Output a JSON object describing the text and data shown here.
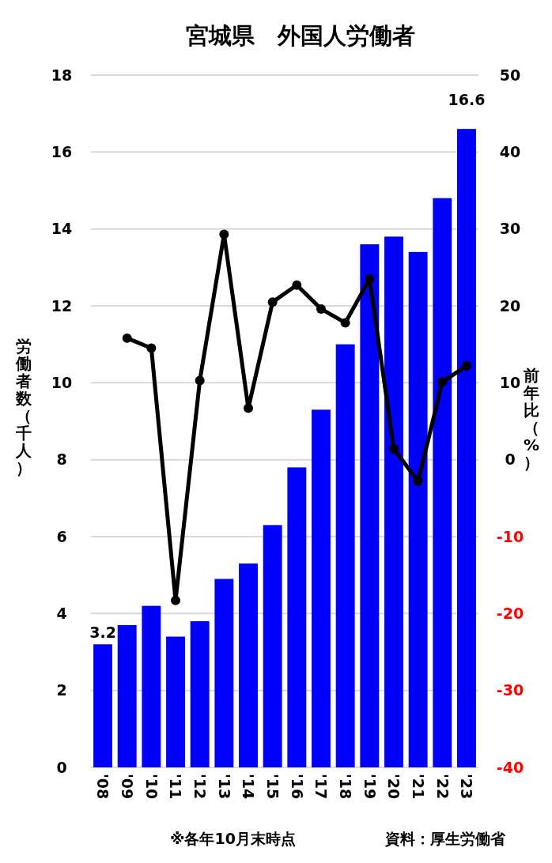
{
  "chart_data": {
    "type": "bar",
    "title": "宮城県　外国人労働者",
    "ylabel": "労働者数（千人）",
    "y2label": "前年比（%）",
    "categories": [
      "'08",
      "'09",
      "'10",
      "'11",
      "'12",
      "'13",
      "'14",
      "'15",
      "'16",
      "'17",
      "'18",
      "'19",
      "'20",
      "'21",
      "'22",
      "'23"
    ],
    "series": [
      {
        "color": "#0000ff",
        "values": [
          3.2,
          3.7,
          4.2,
          3.4,
          3.8,
          4.9,
          5.3,
          6.3,
          7.8,
          9.3,
          11.0,
          13.6,
          13.8,
          13.4,
          14.8,
          16.6
        ],
        "value_labels": [
          "3.2",
          null,
          null,
          null,
          null,
          null,
          null,
          null,
          null,
          null,
          null,
          null,
          null,
          null,
          null,
          "16.6"
        ]
      },
      {
        "type": "line",
        "color": "#000000",
        "axis": "y2",
        "marker": "circle",
        "values": [
          null,
          15.8,
          14.5,
          -18.3,
          10.3,
          29.3,
          6.7,
          20.5,
          22.7,
          19.6,
          17.8,
          23.5,
          1.4,
          -2.8,
          10.1,
          12.2
        ]
      }
    ],
    "ylim": [
      0,
      18
    ],
    "yticks": [
      0,
      2,
      4,
      6,
      8,
      10,
      12,
      14,
      16,
      18
    ],
    "y2lim": [
      -40,
      50
    ],
    "y2ticks": [
      -40,
      -30,
      -20,
      -10,
      0,
      10,
      20,
      30,
      40,
      50
    ],
    "grid": "y",
    "annotations": [
      "※各年10月末時点",
      "資料：厚生労働省"
    ]
  }
}
